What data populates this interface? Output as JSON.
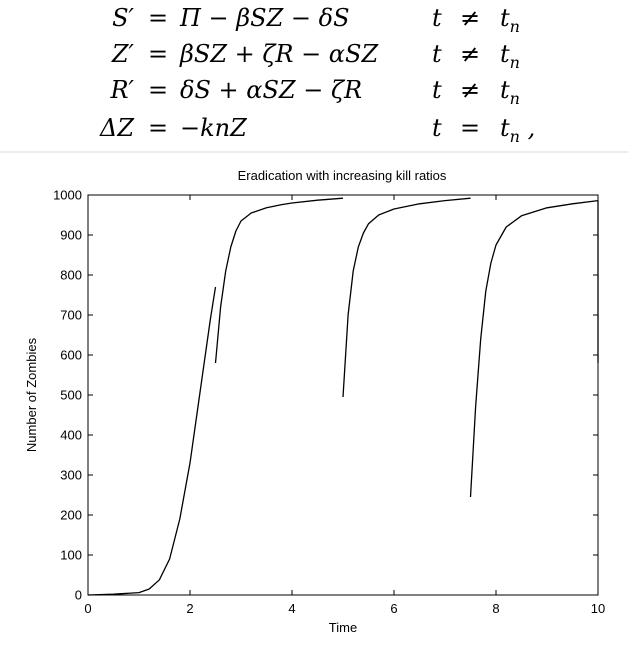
{
  "equations": [
    {
      "lhs": "S′",
      "eq": "=",
      "rhs": "Π − βSZ − δS",
      "t": "t",
      "rel": "≠",
      "tn": "t",
      "sub": "n",
      "tail": ""
    },
    {
      "lhs": "Z′",
      "eq": "=",
      "rhs": "βSZ + ζR − αSZ",
      "t": "t",
      "rel": "≠",
      "tn": "t",
      "sub": "n",
      "tail": ""
    },
    {
      "lhs": "R′",
      "eq": "=",
      "rhs": "δS + αSZ − ζR",
      "t": "t",
      "rel": "≠",
      "tn": "t",
      "sub": "n",
      "tail": ""
    },
    {
      "lhs": "ΔZ",
      "eq": "=",
      "rhs": "−knZ",
      "t": "t",
      "rel": "=",
      "tn": "t",
      "sub": "n",
      "tail": " ,"
    }
  ],
  "chart_data": {
    "type": "line",
    "title": "Eradication with increasing kill ratios",
    "xlabel": "Time",
    "ylabel": "Number of Zombies",
    "xlim": [
      0,
      10
    ],
    "ylim": [
      0,
      1000
    ],
    "xticks": [
      0,
      2,
      4,
      6,
      8,
      10
    ],
    "yticks": [
      0,
      100,
      200,
      300,
      400,
      500,
      600,
      700,
      800,
      900,
      1000
    ],
    "grid": false,
    "series": [
      {
        "segments": [
          {
            "x": [
              0,
              0.5,
              1.0,
              1.2,
              1.4,
              1.6,
              1.8,
              2.0,
              2.1,
              2.2,
              2.3,
              2.4,
              2.5
            ],
            "y": [
              0,
              2,
              6,
              15,
              38,
              90,
              190,
              330,
              420,
              510,
              600,
              690,
              770
            ]
          },
          {
            "x": [
              2.5,
              2.6,
              2.7,
              2.8,
              2.9,
              3.0,
              3.2,
              3.5,
              3.8,
              4.0,
              4.5,
              5.0
            ],
            "y": [
              580,
              720,
              810,
              870,
              910,
              935,
              955,
              968,
              976,
              980,
              987,
              992
            ]
          },
          {
            "x": [
              5.0,
              5.1,
              5.2,
              5.3,
              5.4,
              5.5,
              5.7,
              6.0,
              6.5,
              7.0,
              7.5
            ],
            "y": [
              495,
              700,
              810,
              870,
              905,
              928,
              950,
              965,
              978,
              986,
              992
            ]
          },
          {
            "x": [
              7.5,
              7.6,
              7.7,
              7.8,
              7.9,
              8.0,
              8.2,
              8.5,
              9.0,
              9.5,
              10.0
            ],
            "y": [
              245,
              470,
              640,
              760,
              830,
              875,
              920,
              948,
              968,
              978,
              986
            ]
          },
          {
            "x": [
              10.0,
              10.0
            ],
            "y": [
              986,
              580
            ]
          }
        ]
      }
    ]
  }
}
